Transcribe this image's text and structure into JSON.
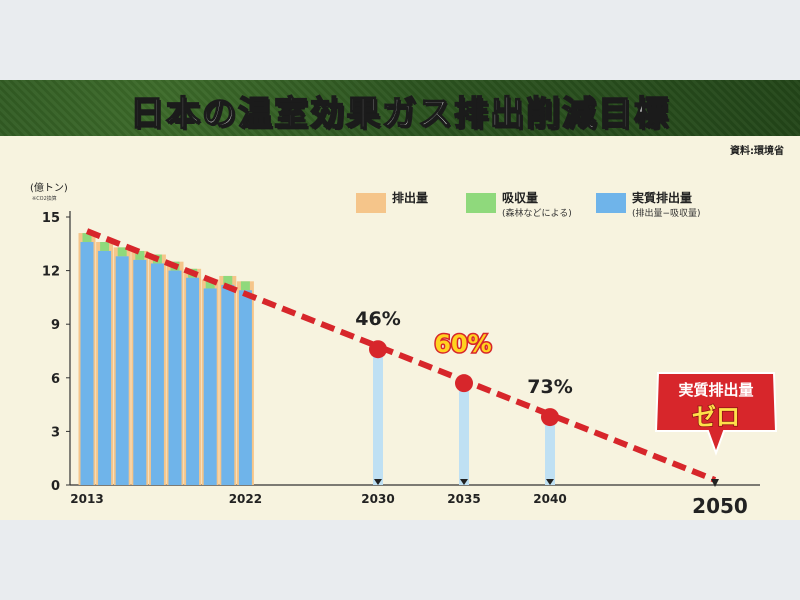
{
  "title": "日本の温室効果ガス排出削減目標",
  "source": "資料:環境省",
  "colors": {
    "emission": "#f5c58a",
    "absorption": "#8fd97c",
    "net": "#6fb4ea",
    "target_bar": "#bfe0f3",
    "trend": "#d7262b",
    "badge": "#d7262b"
  },
  "chart_data": {
    "type": "bar",
    "unit_label": "(億トン)",
    "unit_sub": "※CO2換算",
    "ylim": [
      0,
      15
    ],
    "yticks": [
      "0",
      "3",
      "6",
      "9",
      "12",
      "15"
    ],
    "legend": [
      {
        "key": "emission",
        "label": "排出量",
        "sub": ""
      },
      {
        "key": "absorption",
        "label": "吸収量",
        "sub": "(森林などによる)"
      },
      {
        "key": "net",
        "label": "実質排出量",
        "sub": "(排出量−吸収量)"
      }
    ],
    "historical": {
      "years": [
        2013,
        2014,
        2015,
        2016,
        2017,
        2018,
        2019,
        2020,
        2021,
        2022
      ],
      "emission": [
        14.1,
        13.6,
        13.3,
        13.1,
        12.9,
        12.5,
        12.1,
        11.5,
        11.7,
        11.4
      ],
      "absorption": [
        0.5,
        0.5,
        0.5,
        0.5,
        0.5,
        0.5,
        0.5,
        0.5,
        0.5,
        0.5
      ],
      "net": [
        13.6,
        13.1,
        12.8,
        12.6,
        12.4,
        12.0,
        11.6,
        11.0,
        11.2,
        10.9
      ]
    },
    "targets": [
      {
        "year": 2030,
        "value": 7.6,
        "label": "46%",
        "highlight": false
      },
      {
        "year": 2035,
        "value": 5.7,
        "label": "60%",
        "highlight": true
      },
      {
        "year": 2040,
        "value": 3.8,
        "label": "73%",
        "highlight": false
      }
    ],
    "trend_line": {
      "start": [
        2013,
        14.1
      ],
      "end": [
        2050,
        0
      ]
    },
    "xtick_labels": [
      {
        "year": 2013,
        "label": "2013"
      },
      {
        "year": 2022,
        "label": "2022"
      },
      {
        "year": 2030,
        "label": "2030"
      },
      {
        "year": 2035,
        "label": "2035"
      },
      {
        "year": 2040,
        "label": "2040"
      },
      {
        "year": 2050,
        "label": "2050"
      }
    ],
    "zero_badge": {
      "line1": "実質排出量",
      "line2": "ゼロ"
    }
  }
}
